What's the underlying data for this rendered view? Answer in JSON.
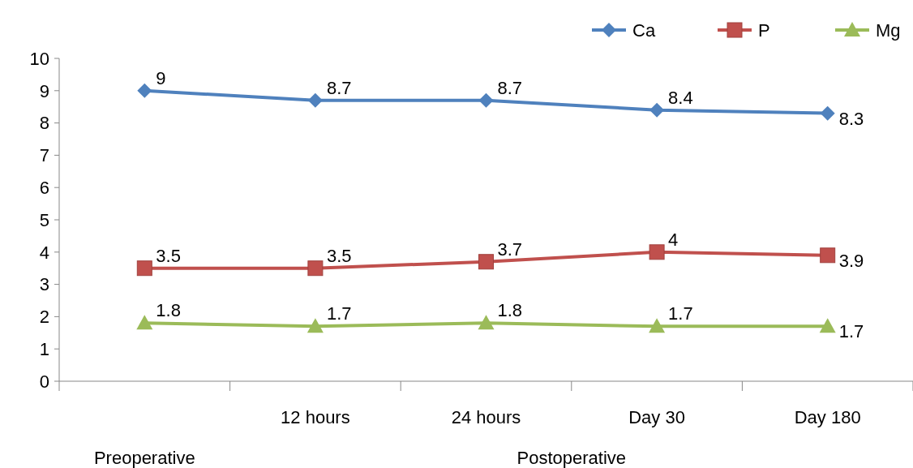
{
  "chart_data": {
    "type": "line",
    "categories": [
      null,
      "12 hours",
      "24 hours",
      "Day 30",
      "Day 180"
    ],
    "series": [
      {
        "name": "Ca",
        "color": "#4f81bd",
        "marker": "diamond",
        "values": [
          9,
          8.7,
          8.7,
          8.4,
          8.3
        ]
      },
      {
        "name": "P",
        "color": "#c0504d",
        "marker": "square",
        "values": [
          3.5,
          3.5,
          3.7,
          4,
          3.9
        ]
      },
      {
        "name": "Mg",
        "color": "#9bbb59",
        "marker": "triangle",
        "values": [
          1.8,
          1.7,
          1.8,
          1.7,
          1.7
        ]
      }
    ],
    "ylim": [
      0,
      10
    ],
    "yticks": [
      0,
      1,
      2,
      3,
      4,
      5,
      6,
      7,
      8,
      9,
      10
    ],
    "grid": false,
    "legend": "top right",
    "data_labels": true,
    "annotations": [
      "Preoperative",
      "Postoperative"
    ]
  }
}
